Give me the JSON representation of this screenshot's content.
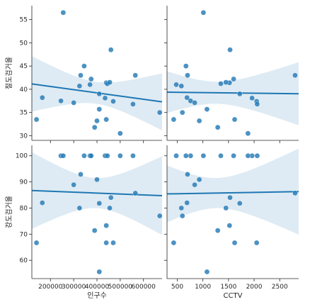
{
  "chart_data": {
    "type": "scatter",
    "kind": "pairplot-regression",
    "x_variables": [
      {
        "label": "인구수",
        "lim": [
          120000,
          680000
        ],
        "ticks": [
          200000,
          300000,
          400000,
          500000,
          600000
        ],
        "tick_labels": [
          "200000",
          "300000",
          "400000",
          "500000",
          "600000"
        ]
      },
      {
        "label": "CCTV",
        "lim": [
          300,
          2870
        ],
        "ticks": [
          500,
          1000,
          1500,
          2000,
          2500
        ],
        "tick_labels": [
          "500",
          "1000",
          "1500",
          "2000",
          "2500"
        ]
      }
    ],
    "y_variables": [
      {
        "label": "절도검거율",
        "lim": [
          29,
          58
        ],
        "ticks": [
          30,
          35,
          40,
          45,
          50,
          55
        ],
        "tick_labels": [
          "30",
          "35",
          "40",
          "45",
          "50",
          "55"
        ]
      },
      {
        "label": "강도검거율",
        "lim": [
          53,
          104
        ],
        "ticks": [
          60,
          70,
          80,
          90,
          100
        ],
        "tick_labels": [
          "60",
          "70",
          "80",
          "90",
          "100"
        ]
      }
    ],
    "observations": [
      {
        "pop": 140000,
        "cctv": 430,
        "theft": 33.5,
        "robbery": 66.7
      },
      {
        "pop": 165000,
        "cctv": 690,
        "theft": 38.2,
        "robbery": 82.0
      },
      {
        "pop": 245000,
        "cctv": 760,
        "theft": 37.5,
        "robbery": 100
      },
      {
        "pop": 255000,
        "cctv": 1010,
        "theft": 56.5,
        "robbery": 100
      },
      {
        "pop": 300000,
        "cctv": 840,
        "theft": 37.1,
        "robbery": 88.9
      },
      {
        "pop": 325000,
        "cctv": 580,
        "theft": 40.7,
        "robbery": 80.0
      },
      {
        "pop": 330000,
        "cctv": 700,
        "theft": 43.0,
        "robbery": 92.9
      },
      {
        "pop": 345000,
        "cctv": 670,
        "theft": 45.0,
        "robbery": 100
      },
      {
        "pop": 370000,
        "cctv": 480,
        "theft": 41.0,
        "robbery": 100
      },
      {
        "pop": 375000,
        "cctv": 1600,
        "theft": 42.2,
        "robbery": 100
      },
      {
        "pop": 390000,
        "cctv": 1290,
        "theft": 31.8,
        "robbery": 71.4
      },
      {
        "pop": 400000,
        "cctv": 930,
        "theft": 33.2,
        "robbery": 90.9
      },
      {
        "pop": 410000,
        "cctv": 1080,
        "theft": 35.7,
        "robbery": 55.6
      },
      {
        "pop": 410000,
        "cctv": 1720,
        "theft": 39.0,
        "robbery": 81.8
      },
      {
        "pop": 435000,
        "cctv": 1960,
        "theft": 38.1,
        "robbery": 100
      },
      {
        "pop": 440000,
        "cctv": 1520,
        "theft": 41.4,
        "robbery": 73.3
      },
      {
        "pop": 440000,
        "cctv": 1620,
        "theft": 33.5,
        "robbery": 66.7
      },
      {
        "pop": 445000,
        "cctv": 1350,
        "theft": 41.2,
        "robbery": 100
      },
      {
        "pop": 455000,
        "cctv": 1450,
        "theft": 41.5,
        "robbery": 80.0
      },
      {
        "pop": 460000,
        "cctv": 1530,
        "theft": 48.5,
        "robbery": 84.0
      },
      {
        "pop": 470000,
        "cctv": 2050,
        "theft": 37.4,
        "robbery": 66.7
      },
      {
        "pop": 500000,
        "cctv": 1880,
        "theft": 30.5,
        "robbery": 100
      },
      {
        "pop": 555000,
        "cctv": 2060,
        "theft": 36.8,
        "robbery": 100
      },
      {
        "pop": 565000,
        "cctv": 2800,
        "theft": 43.0,
        "robbery": 85.7
      },
      {
        "pop": 670000,
        "cctv": 600,
        "theft": 35.0,
        "robbery": 77.0
      }
    ],
    "regression": {
      "ci": 95,
      "band": true
    },
    "legend": "none",
    "grid": false
  }
}
